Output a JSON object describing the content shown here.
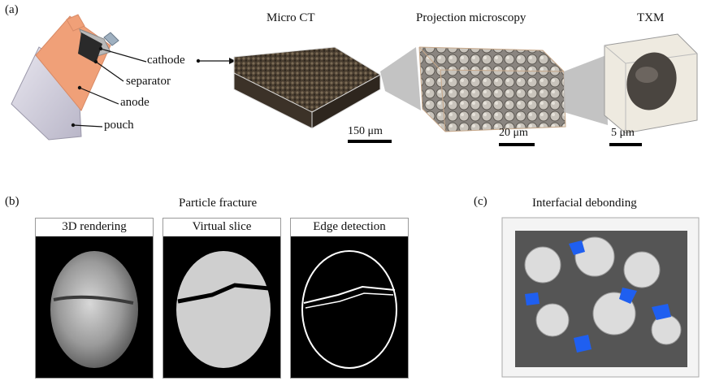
{
  "panel_a": {
    "label": "(a)",
    "battery_labels": {
      "cathode": "cathode",
      "separator": "separator",
      "anode": "anode",
      "pouch": "pouch"
    },
    "titles": {
      "micro_ct": "Micro CT",
      "projection": "Projection microscopy",
      "txm": "TXM"
    },
    "scales": {
      "micro_ct": "150 μm",
      "projection": "20 μm",
      "txm": "5 μm"
    }
  },
  "panel_b": {
    "label": "(b)",
    "title": "Particle fracture",
    "subpanels": {
      "rendering": "3D rendering",
      "slice": "Virtual slice",
      "edge": "Edge detection"
    }
  },
  "panel_c": {
    "label": "(c)",
    "title": "Interfacial debonding"
  },
  "colors": {
    "anode": "#f0a078",
    "pouch": "#c9c6d6",
    "debond_blue": "#1f5ff0",
    "zoom_gray": "#b8b8b8"
  }
}
